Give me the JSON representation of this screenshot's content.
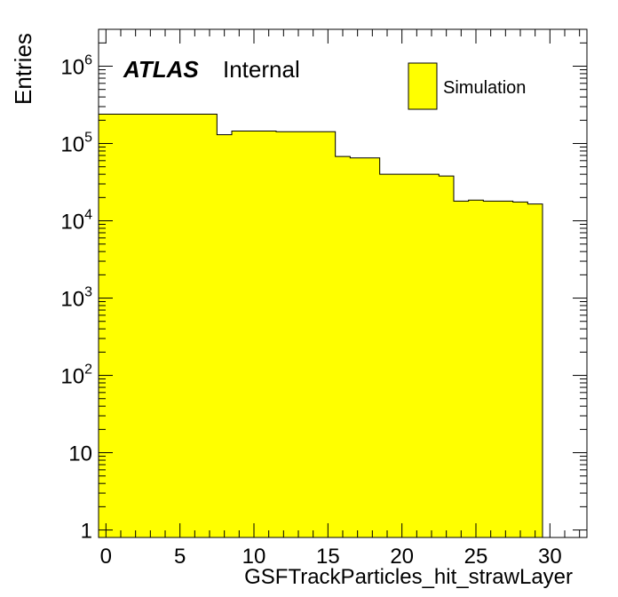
{
  "chart_data": {
    "type": "bar",
    "title": "",
    "xlabel": "GSFTrackParticles_hit_strawLayer",
    "ylabel": "Entries",
    "xlim": [
      -0.5,
      32.5
    ],
    "ylim": [
      0.8,
      3000000
    ],
    "log_y": true,
    "bin_width": 1,
    "bins_x": [
      0,
      1,
      2,
      3,
      4,
      5,
      6,
      7,
      8,
      9,
      10,
      11,
      12,
      13,
      14,
      15,
      16,
      17,
      18,
      19,
      20,
      21,
      22,
      23,
      24,
      25,
      26,
      27,
      28,
      29
    ],
    "series": [
      {
        "name": "Simulation",
        "color": "#ffff00",
        "values": [
          240000,
          240000,
          240000,
          240000,
          240000,
          240000,
          240000,
          240000,
          130000,
          145000,
          145000,
          145000,
          142000,
          142000,
          142000,
          142000,
          68000,
          65000,
          65000,
          40000,
          40000,
          40000,
          40000,
          38000,
          18000,
          18500,
          18000,
          18000,
          17500,
          16500
        ]
      }
    ],
    "x_ticks": [
      "0",
      "5",
      "10",
      "15",
      "20",
      "25",
      "30"
    ],
    "y_ticks": [
      "1",
      "10",
      "10^2",
      "10^3",
      "10^4",
      "10^5",
      "10^6"
    ],
    "legend": {
      "position": "top-right",
      "entries": [
        "Simulation"
      ]
    },
    "annotation": {
      "atlas": "ATLAS",
      "status": "Internal"
    }
  }
}
